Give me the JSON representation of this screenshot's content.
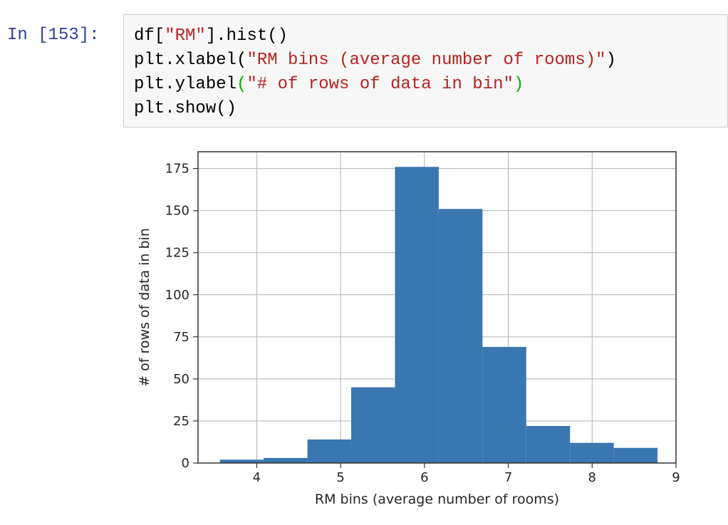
{
  "cell": {
    "prompt": "In [153]:",
    "lines": [
      [
        "df[",
        "\"RM\"",
        "].hist()",
        "",
        ""
      ],
      [
        "plt.xlabel(",
        "\"RM bins (average number of rooms)\"",
        ")",
        "",
        ""
      ],
      [
        "plt.ylabel",
        "(",
        "\"# of rows of data in bin\"",
        ")",
        ""
      ],
      [
        "plt.show()",
        "",
        "",
        "",
        ""
      ]
    ]
  },
  "chart_data": {
    "type": "bar",
    "bin_edges": [
      3.561,
      4.0829,
      4.6048,
      5.1267,
      5.6486,
      6.1705,
      6.6924,
      7.2143,
      7.7362,
      8.2581,
      8.78
    ],
    "values": [
      2,
      3,
      14,
      45,
      176,
      151,
      69,
      22,
      12,
      9
    ],
    "xlabel": "RM bins (average number of rooms)",
    "ylabel": "# of rows of data in bin",
    "xlim": [
      3.3,
      9.0
    ],
    "ylim": [
      0,
      185
    ],
    "xticks": [
      "4",
      "5",
      "6",
      "7",
      "8",
      "9"
    ],
    "yticks": [
      "0",
      "25",
      "50",
      "75",
      "100",
      "125",
      "150",
      "175"
    ],
    "grid": true,
    "bar_color": "#3a76af",
    "grid_color": "#b0b0b0"
  }
}
